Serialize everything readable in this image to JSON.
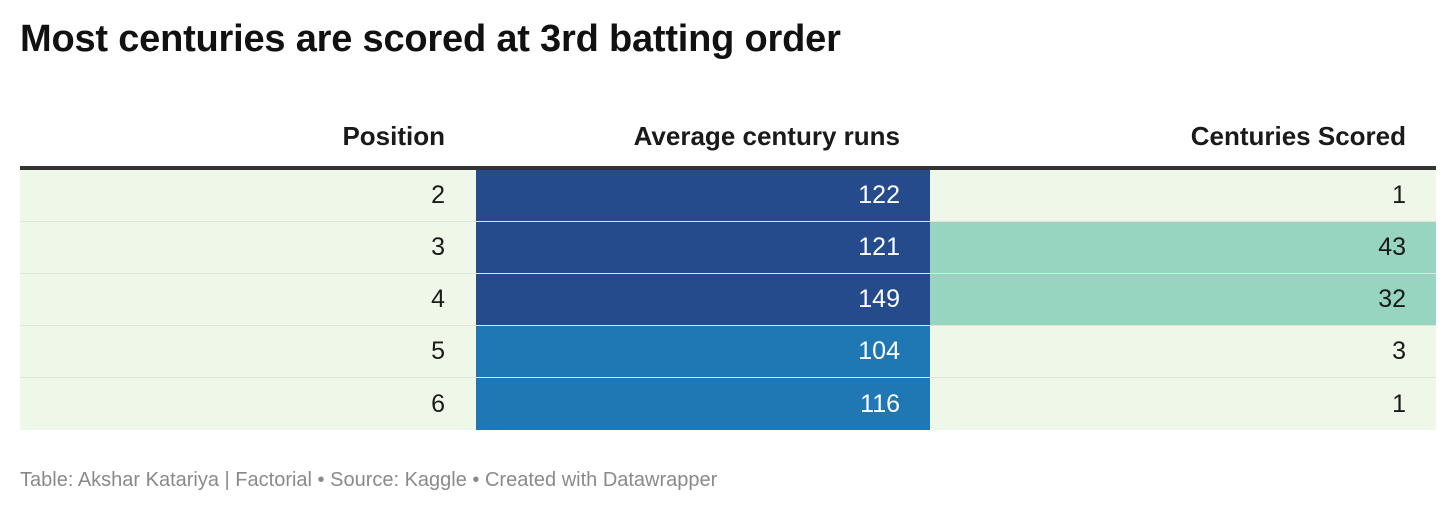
{
  "header": {
    "title": "Most centuries are scored at 3rd batting order"
  },
  "chart_data": {
    "type": "table",
    "title": "Most centuries are scored at 3rd batting order",
    "columns": [
      "Position",
      "Average century runs",
      "Centuries Scored"
    ],
    "rows": [
      {
        "position": "2",
        "avg_runs": "122",
        "centuries": "1"
      },
      {
        "position": "3",
        "avg_runs": "121",
        "centuries": "43"
      },
      {
        "position": "4",
        "avg_runs": "149",
        "centuries": "32"
      },
      {
        "position": "5",
        "avg_runs": "104",
        "centuries": "3"
      },
      {
        "position": "6",
        "avg_runs": "116",
        "centuries": "1"
      }
    ],
    "cell_colors": {
      "avg_runs": [
        "#254b8c",
        "#254b8c",
        "#254b8c",
        "#1f78b4",
        "#1f78b4"
      ],
      "centuries": [
        "#eff8e8",
        "#97d5c0",
        "#97d5c0",
        "#eff8e8",
        "#eff8e8"
      ],
      "position": "#eff8e8"
    }
  },
  "footer": {
    "credit": "Table: Akshar Katariya | Factorial • Source: Kaggle • Created with Datawrapper"
  }
}
